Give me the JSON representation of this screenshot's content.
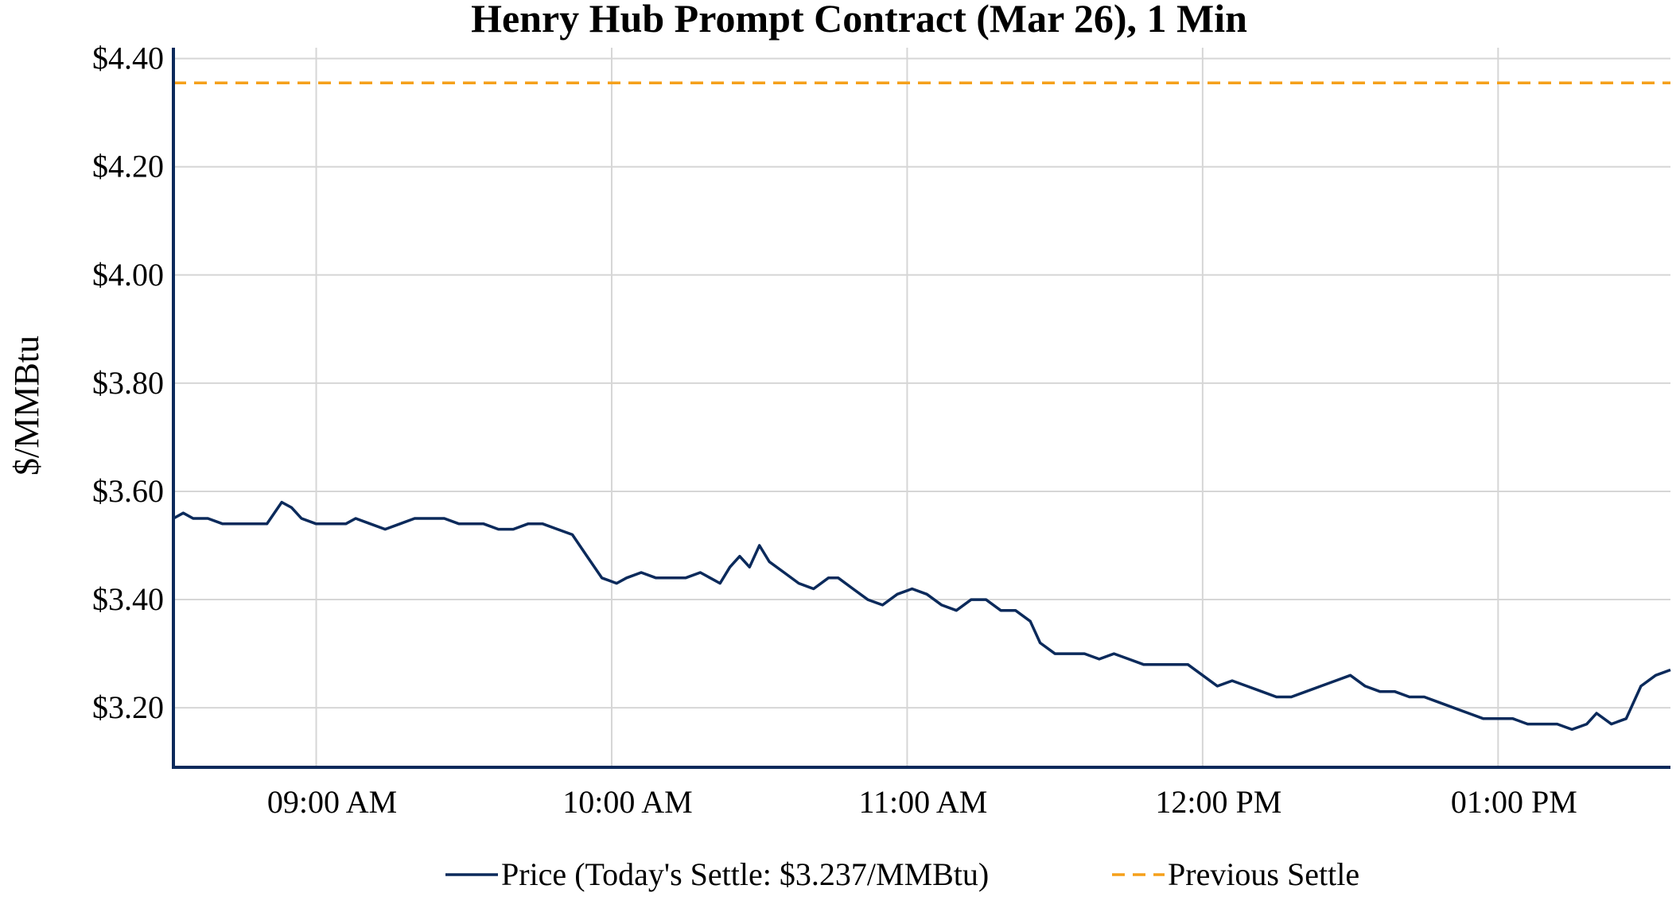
{
  "chart_data": {
    "type": "line",
    "title": "Henry Hub Prompt Contract (Mar 26), 1 Min",
    "ylabel": "$/MMBtu",
    "xlabel": "",
    "ylim": [
      3.09,
      4.42
    ],
    "xlim": [
      "08:31",
      "13:35"
    ],
    "y_ticks": [
      3.2,
      3.4,
      3.6,
      3.8,
      4.0,
      4.2,
      4.4
    ],
    "y_tick_labels": [
      "$3.20",
      "$3.40",
      "$3.60",
      "$3.80",
      "$4.00",
      "$4.20",
      "$4.40"
    ],
    "x_ticks": [
      "09:00",
      "10:00",
      "11:00",
      "12:00",
      "13:00"
    ],
    "x_tick_labels": [
      "09:00 AM",
      "10:00 AM",
      "11:00 AM",
      "12:00 PM",
      "01:00 PM"
    ],
    "grid": true,
    "legend_position": "bottom-center",
    "series": [
      {
        "name": "Price (Today's Settle: $3.237/MMBtu)",
        "color": "#0b2a5b",
        "style": "solid",
        "points": [
          [
            "08:31",
            3.55
          ],
          [
            "08:33",
            3.56
          ],
          [
            "08:35",
            3.55
          ],
          [
            "08:38",
            3.55
          ],
          [
            "08:41",
            3.54
          ],
          [
            "08:44",
            3.54
          ],
          [
            "08:47",
            3.54
          ],
          [
            "08:50",
            3.54
          ],
          [
            "08:53",
            3.58
          ],
          [
            "08:55",
            3.57
          ],
          [
            "08:57",
            3.55
          ],
          [
            "09:00",
            3.54
          ],
          [
            "09:03",
            3.54
          ],
          [
            "09:06",
            3.54
          ],
          [
            "09:08",
            3.55
          ],
          [
            "09:11",
            3.54
          ],
          [
            "09:14",
            3.53
          ],
          [
            "09:17",
            3.54
          ],
          [
            "09:20",
            3.55
          ],
          [
            "09:23",
            3.55
          ],
          [
            "09:26",
            3.55
          ],
          [
            "09:29",
            3.54
          ],
          [
            "09:31",
            3.54
          ],
          [
            "09:34",
            3.54
          ],
          [
            "09:37",
            3.53
          ],
          [
            "09:40",
            3.53
          ],
          [
            "09:43",
            3.54
          ],
          [
            "09:46",
            3.54
          ],
          [
            "09:49",
            3.53
          ],
          [
            "09:52",
            3.52
          ],
          [
            "09:55",
            3.48
          ],
          [
            "09:58",
            3.44
          ],
          [
            "10:01",
            3.43
          ],
          [
            "10:03",
            3.44
          ],
          [
            "10:06",
            3.45
          ],
          [
            "10:09",
            3.44
          ],
          [
            "10:12",
            3.44
          ],
          [
            "10:15",
            3.44
          ],
          [
            "10:18",
            3.45
          ],
          [
            "10:20",
            3.44
          ],
          [
            "10:22",
            3.43
          ],
          [
            "10:24",
            3.46
          ],
          [
            "10:26",
            3.48
          ],
          [
            "10:28",
            3.46
          ],
          [
            "10:30",
            3.5
          ],
          [
            "10:32",
            3.47
          ],
          [
            "10:35",
            3.45
          ],
          [
            "10:38",
            3.43
          ],
          [
            "10:41",
            3.42
          ],
          [
            "10:44",
            3.44
          ],
          [
            "10:46",
            3.44
          ],
          [
            "10:49",
            3.42
          ],
          [
            "10:52",
            3.4
          ],
          [
            "10:55",
            3.39
          ],
          [
            "10:58",
            3.41
          ],
          [
            "11:01",
            3.42
          ],
          [
            "11:04",
            3.41
          ],
          [
            "11:07",
            3.39
          ],
          [
            "11:10",
            3.38
          ],
          [
            "11:13",
            3.4
          ],
          [
            "11:16",
            3.4
          ],
          [
            "11:19",
            3.38
          ],
          [
            "11:22",
            3.38
          ],
          [
            "11:25",
            3.36
          ],
          [
            "11:27",
            3.32
          ],
          [
            "11:30",
            3.3
          ],
          [
            "11:33",
            3.3
          ],
          [
            "11:36",
            3.3
          ],
          [
            "11:39",
            3.29
          ],
          [
            "11:42",
            3.3
          ],
          [
            "11:45",
            3.29
          ],
          [
            "11:48",
            3.28
          ],
          [
            "11:51",
            3.28
          ],
          [
            "11:54",
            3.28
          ],
          [
            "11:57",
            3.28
          ],
          [
            "12:00",
            3.26
          ],
          [
            "12:03",
            3.24
          ],
          [
            "12:06",
            3.25
          ],
          [
            "12:09",
            3.24
          ],
          [
            "12:12",
            3.23
          ],
          [
            "12:15",
            3.22
          ],
          [
            "12:18",
            3.22
          ],
          [
            "12:21",
            3.23
          ],
          [
            "12:24",
            3.24
          ],
          [
            "12:27",
            3.25
          ],
          [
            "12:30",
            3.26
          ],
          [
            "12:33",
            3.24
          ],
          [
            "12:36",
            3.23
          ],
          [
            "12:39",
            3.23
          ],
          [
            "12:42",
            3.22
          ],
          [
            "12:45",
            3.22
          ],
          [
            "12:48",
            3.21
          ],
          [
            "12:51",
            3.2
          ],
          [
            "12:54",
            3.19
          ],
          [
            "12:57",
            3.18
          ],
          [
            "13:00",
            3.18
          ],
          [
            "13:03",
            3.18
          ],
          [
            "13:06",
            3.17
          ],
          [
            "13:09",
            3.17
          ],
          [
            "13:12",
            3.17
          ],
          [
            "13:15",
            3.16
          ],
          [
            "13:18",
            3.17
          ],
          [
            "13:20",
            3.19
          ],
          [
            "13:23",
            3.17
          ],
          [
            "13:26",
            3.18
          ],
          [
            "13:29",
            3.24
          ],
          [
            "13:32",
            3.26
          ],
          [
            "13:35",
            3.27
          ]
        ]
      },
      {
        "name": "Previous Settle",
        "color": "#f5a01a",
        "style": "dashed",
        "value": 4.355
      }
    ]
  }
}
